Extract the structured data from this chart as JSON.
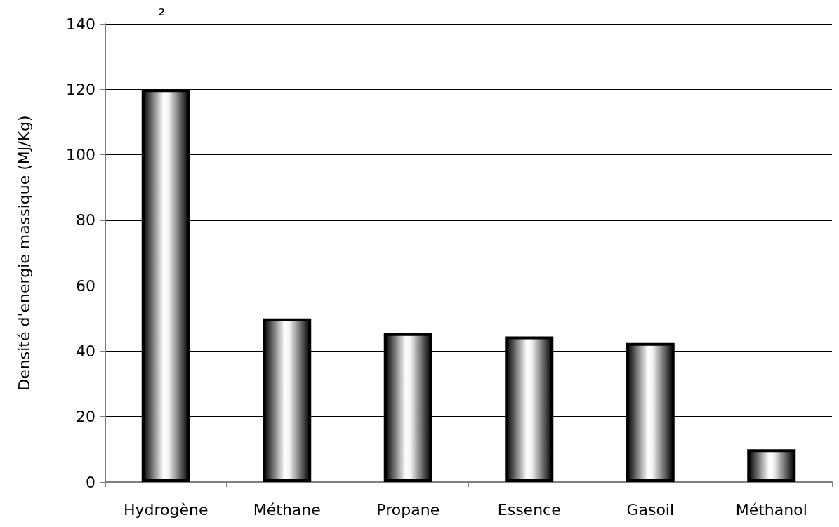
{
  "chart_data": {
    "type": "bar",
    "ylabel": "Densité d'energie massique (MJ/Kg)",
    "annotations": [
      "₂"
    ],
    "categories": [
      "Hydrogène",
      "Méthane",
      "Propane",
      "Essence",
      "Gasoil",
      "Méthanol"
    ],
    "values": [
      120,
      50,
      45.5,
      44.5,
      42.5,
      10
    ],
    "color": "#000000",
    "ylim": [
      0,
      140
    ],
    "yticks": [
      0,
      20,
      40,
      60,
      80,
      100,
      120,
      140
    ],
    "grid": "y"
  }
}
